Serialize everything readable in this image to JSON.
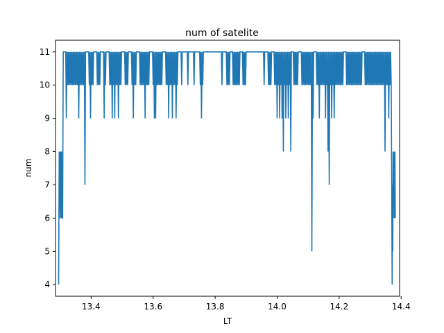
{
  "chart_data": {
    "type": "line",
    "title": "num of satelite",
    "xlabel": "LT",
    "ylabel": "num",
    "xlim": [
      13.285,
      14.395
    ],
    "ylim": [
      3.65,
      11.35
    ],
    "x_ticks": [
      13.4,
      13.6,
      13.8,
      14.0,
      14.2,
      14.4
    ],
    "y_ticks": [
      4,
      5,
      6,
      7,
      8,
      9,
      10,
      11
    ],
    "grid": false,
    "line_color": "#1f77b4",
    "series": [
      {
        "x": [
          13.295,
          13.297,
          13.298,
          13.299,
          13.3,
          13.301,
          13.302,
          13.303,
          13.304,
          13.305,
          13.306,
          13.308,
          13.31,
          13.318,
          13.32,
          13.322,
          13.324,
          13.326,
          13.328,
          13.33,
          13.332,
          13.334,
          13.336,
          13.338,
          13.34,
          13.342,
          13.344,
          13.346,
          13.348,
          13.35,
          13.352,
          13.354,
          13.356,
          13.358,
          13.36,
          13.362,
          13.364,
          13.366,
          13.368,
          13.37,
          13.372,
          13.374,
          13.376,
          13.378,
          13.38,
          13.382,
          13.384,
          13.392,
          13.394,
          13.396,
          13.398,
          13.4,
          13.402,
          13.404,
          13.406,
          13.408,
          13.41,
          13.418,
          13.42,
          13.422,
          13.424,
          13.426,
          13.428,
          13.43,
          13.432,
          13.44,
          13.442,
          13.444,
          13.446,
          13.448,
          13.45,
          13.458,
          13.46,
          13.462,
          13.464,
          13.466,
          13.468,
          13.47,
          13.472,
          13.474,
          13.476,
          13.478,
          13.48,
          13.482,
          13.484,
          13.486,
          13.488,
          13.49,
          13.492,
          13.494,
          13.496,
          13.498,
          13.5,
          13.508,
          13.51,
          13.512,
          13.514,
          13.516,
          13.518,
          13.52,
          13.522,
          13.53,
          13.532,
          13.534,
          13.536,
          13.538,
          13.54,
          13.542,
          13.544,
          13.546,
          13.548,
          13.556,
          13.558,
          13.56,
          13.562,
          13.564,
          13.566,
          13.568,
          13.57,
          13.572,
          13.574,
          13.576,
          13.578,
          13.58,
          13.582,
          13.584,
          13.586,
          13.588,
          13.59,
          13.598,
          13.6,
          13.602,
          13.604,
          13.606,
          13.608,
          13.61,
          13.612,
          13.614,
          13.616,
          13.618,
          13.62,
          13.622,
          13.624,
          13.626,
          13.628,
          13.63,
          13.632,
          13.64,
          13.642,
          13.644,
          13.646,
          13.648,
          13.65,
          13.652,
          13.654,
          13.656,
          13.658,
          13.66,
          13.662,
          13.664,
          13.666,
          13.668,
          13.67,
          13.672,
          13.674,
          13.676,
          13.678,
          13.68,
          13.682,
          13.69,
          13.692,
          13.694,
          13.696,
          13.71,
          13.712,
          13.714,
          13.716,
          13.73,
          13.732,
          13.734,
          13.736,
          13.75,
          13.752,
          13.754,
          13.756,
          13.758,
          13.76,
          13.762,
          13.764,
          13.79,
          13.8,
          13.81,
          13.82,
          13.822,
          13.824,
          13.826,
          13.836,
          13.838,
          13.84,
          13.842,
          13.844,
          13.846,
          13.848,
          13.85,
          13.856,
          13.858,
          13.86,
          13.862,
          13.864,
          13.866,
          13.868,
          13.87,
          13.872,
          13.874,
          13.876,
          13.878,
          13.88,
          13.882,
          13.888,
          13.89,
          13.892,
          13.894,
          13.896,
          13.898,
          13.9,
          13.902,
          13.91,
          13.92,
          13.93,
          13.94,
          13.95,
          13.956,
          13.958,
          13.96,
          13.962,
          13.97,
          13.972,
          13.974,
          13.976,
          13.978,
          13.98,
          13.982,
          13.984,
          13.99,
          13.992,
          13.994,
          13.996,
          13.998,
          14.0,
          14.002,
          14.004,
          14.006,
          14.008,
          14.01,
          14.012,
          14.014,
          14.016,
          14.018,
          14.02,
          14.022,
          14.024,
          14.026,
          14.028,
          14.03,
          14.032,
          14.034,
          14.036,
          14.038,
          14.04,
          14.042,
          14.044,
          14.046,
          14.052,
          14.054,
          14.056,
          14.058,
          14.06,
          14.062,
          14.064,
          14.066,
          14.068,
          14.07,
          14.078,
          14.08,
          14.082,
          14.084,
          14.086,
          14.088,
          14.09,
          14.092,
          14.094,
          14.096,
          14.098,
          14.1,
          14.102,
          14.104,
          14.106,
          14.108,
          14.11,
          14.112,
          14.114,
          14.116,
          14.118,
          14.126,
          14.128,
          14.13,
          14.132,
          14.134,
          14.136,
          14.138,
          14.14,
          14.142,
          14.144,
          14.146,
          14.148,
          14.15,
          14.152,
          14.154,
          14.156,
          14.158,
          14.16,
          14.162,
          14.164,
          14.166,
          14.168,
          14.17,
          14.172,
          14.174,
          14.176,
          14.178,
          14.18,
          14.182,
          14.184,
          14.186,
          14.188,
          14.19,
          14.192,
          14.194,
          14.196,
          14.198,
          14.2,
          14.202,
          14.204,
          14.206,
          14.208,
          14.21,
          14.212,
          14.214,
          14.216,
          14.222,
          14.224,
          14.226,
          14.228,
          14.23,
          14.232,
          14.234,
          14.236,
          14.238,
          14.24,
          14.242,
          14.244,
          14.246,
          14.248,
          14.25,
          14.252,
          14.254,
          14.256,
          14.258,
          14.26,
          14.262,
          14.264,
          14.266,
          14.268,
          14.27,
          14.272,
          14.274,
          14.276,
          14.282,
          14.284,
          14.286,
          14.288,
          14.29,
          14.292,
          14.294,
          14.296,
          14.298,
          14.3,
          14.302,
          14.304,
          14.306,
          14.308,
          14.31,
          14.312,
          14.314,
          14.316,
          14.318,
          14.32,
          14.322,
          14.324,
          14.326,
          14.328,
          14.33,
          14.332,
          14.334,
          14.336,
          14.338,
          14.34,
          14.342,
          14.344,
          14.346,
          14.348,
          14.35,
          14.352,
          14.354,
          14.356,
          14.358,
          14.36,
          14.362,
          14.364,
          14.366,
          14.368,
          14.37,
          14.371,
          14.372,
          14.373,
          14.374,
          14.375,
          14.376,
          14.377,
          14.378,
          14.379,
          14.38,
          14.381
        ],
        "y": [
          4,
          8,
          7,
          8,
          6,
          8,
          7,
          8,
          6,
          8,
          6,
          6,
          11,
          11,
          9,
          11,
          10,
          11,
          10,
          11,
          10,
          11,
          10,
          11,
          10,
          11,
          10,
          11,
          10,
          11,
          10,
          11,
          10,
          11,
          9,
          11,
          10,
          11,
          10,
          11,
          10,
          11,
          10,
          11,
          7,
          11,
          11,
          11,
          10,
          11,
          9,
          11,
          10,
          11,
          10,
          11,
          11,
          11,
          10,
          11,
          10,
          11,
          10,
          11,
          11,
          11,
          9,
          11,
          10,
          11,
          11,
          11,
          10,
          11,
          10,
          11,
          9,
          11,
          10,
          11,
          9,
          11,
          10,
          11,
          10,
          11,
          9,
          11,
          10,
          11,
          10,
          11,
          11,
          11,
          10,
          11,
          10,
          11,
          10,
          11,
          11,
          11,
          10,
          11,
          9,
          11,
          10,
          11,
          10,
          11,
          11,
          11,
          10,
          11,
          10,
          11,
          10,
          11,
          10,
          11,
          9,
          11,
          10,
          11,
          10,
          11,
          10,
          11,
          11,
          11,
          10,
          11,
          9,
          11,
          9,
          11,
          10,
          11,
          10,
          11,
          10,
          11,
          10,
          11,
          10,
          11,
          11,
          11,
          10,
          11,
          10,
          11,
          9,
          11,
          10,
          11,
          10,
          11,
          9,
          11,
          10,
          11,
          10,
          11,
          9,
          11,
          10,
          11,
          11,
          11,
          10,
          11,
          11,
          11,
          10,
          11,
          11,
          11,
          10,
          11,
          11,
          11,
          10,
          11,
          9,
          11,
          10,
          11,
          11,
          11,
          11,
          11,
          11,
          10,
          11,
          11,
          11,
          10,
          11,
          10,
          11,
          10,
          11,
          11,
          11,
          10,
          11,
          10,
          11,
          10,
          11,
          10,
          11,
          10,
          11,
          10,
          11,
          11,
          11,
          10,
          11,
          10,
          11,
          10,
          11,
          11,
          11,
          11,
          11,
          11,
          11,
          11,
          10,
          11,
          11,
          11,
          10,
          11,
          10,
          11,
          10,
          11,
          11,
          11,
          10,
          11,
          10,
          11,
          9,
          11,
          10,
          11,
          9,
          11,
          10,
          11,
          9,
          11,
          8,
          11,
          10,
          11,
          9,
          11,
          10,
          11,
          9,
          11,
          10,
          11,
          8,
          11,
          11,
          10,
          11,
          10,
          11,
          10,
          11,
          10,
          11,
          11,
          11,
          10,
          11,
          10,
          11,
          10,
          11,
          10,
          11,
          10,
          11,
          10,
          11,
          10,
          11,
          10,
          11,
          5,
          11,
          9,
          11,
          11,
          10,
          11,
          10,
          11,
          9,
          11,
          10,
          11,
          10,
          11,
          10,
          11,
          10,
          11,
          9,
          11,
          10,
          11,
          8,
          11,
          7,
          11,
          10,
          11,
          9,
          11,
          10,
          11,
          9,
          11,
          10,
          11,
          10,
          11,
          10,
          11,
          10,
          11,
          10,
          11,
          10,
          11,
          10,
          11,
          11,
          11,
          10,
          11,
          10,
          11,
          10,
          11,
          10,
          11,
          10,
          11,
          10,
          11,
          10,
          11,
          10,
          11,
          10,
          11,
          10,
          11,
          10,
          11,
          10,
          11,
          10,
          11,
          11,
          11,
          10,
          11,
          10,
          11,
          10,
          11,
          10,
          11,
          10,
          11,
          10,
          11,
          10,
          11,
          10,
          11,
          10,
          11,
          10,
          11,
          10,
          11,
          10,
          11,
          10,
          11,
          10,
          11,
          10,
          11,
          10,
          11,
          8,
          11,
          10,
          11,
          10,
          11,
          9,
          11,
          10,
          11,
          10,
          6,
          4,
          7,
          5,
          8,
          6,
          8,
          7,
          8,
          6,
          8,
          6
        ]
      }
    ]
  }
}
